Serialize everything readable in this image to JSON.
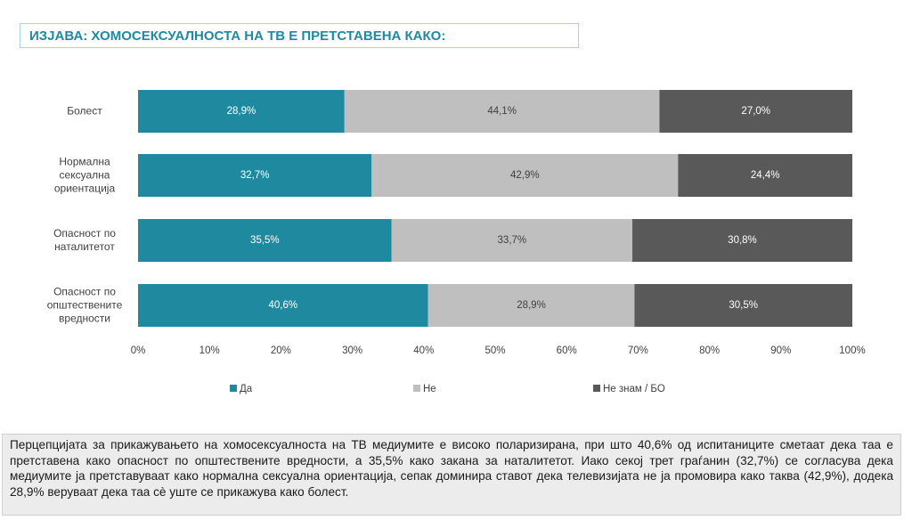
{
  "chart_data": {
    "type": "stacked-bar-horizontal",
    "title": "ИЗЈАВА: ХОМОСЕКСУАЛНОСТА НА ТВ Е ПРЕТСТАВЕНА КАКО:",
    "categories": [
      "Болест",
      "Нормална сексуална ориентација",
      "Опасност по наталитетот",
      "Опасност по општествените вредности"
    ],
    "series": [
      {
        "name": "Да",
        "color": "#1f8a9f",
        "values": [
          28.9,
          32.7,
          35.5,
          40.6
        ],
        "value_labels": [
          "28,9%",
          "32,7%",
          "35,5%",
          "40,6%"
        ]
      },
      {
        "name": "Не",
        "color": "#bfbfbf",
        "values": [
          44.1,
          42.9,
          33.7,
          28.9
        ],
        "value_labels": [
          "44,1%",
          "42,9%",
          "33,7%",
          "28,9%"
        ]
      },
      {
        "name": "Не знам / БО",
        "color": "#595959",
        "values": [
          27.0,
          24.4,
          30.8,
          30.5
        ],
        "value_labels": [
          "27,0%",
          "24,4%",
          "30,8%",
          "30,5%"
        ]
      }
    ],
    "xlim": [
      0,
      100
    ],
    "xticks": [
      {
        "value": 0,
        "label": "0%"
      },
      {
        "value": 10,
        "label": "10%"
      },
      {
        "value": 20,
        "label": "20%"
      },
      {
        "value": 30,
        "label": "30%"
      },
      {
        "value": 40,
        "label": "40%"
      },
      {
        "value": 50,
        "label": "50%"
      },
      {
        "value": 60,
        "label": "60%"
      },
      {
        "value": 70,
        "label": "70%"
      },
      {
        "value": 80,
        "label": "80%"
      },
      {
        "value": 90,
        "label": "90%"
      },
      {
        "value": 100,
        "label": "100%"
      }
    ],
    "legend": "bottom"
  },
  "summary": "Перцепцијата за прикажувањето на хомосексуалноста на ТВ медиумите е високо поларизирана, при што 40,6% од испитаниците сметаат дека таа е претставена како опасност по општествените вредности, а 35,5% како закана за наталитетот. Иако секој трет граѓанин (32,7%) се согласува дека медиумите ја претставуваат како нормална сексуална ориентација, сепак доминира ставот дека телевизијата не ја промовира како таква (42,9%), додека 28,9% веруваат дека таа сè уште се прикажува како болест."
}
